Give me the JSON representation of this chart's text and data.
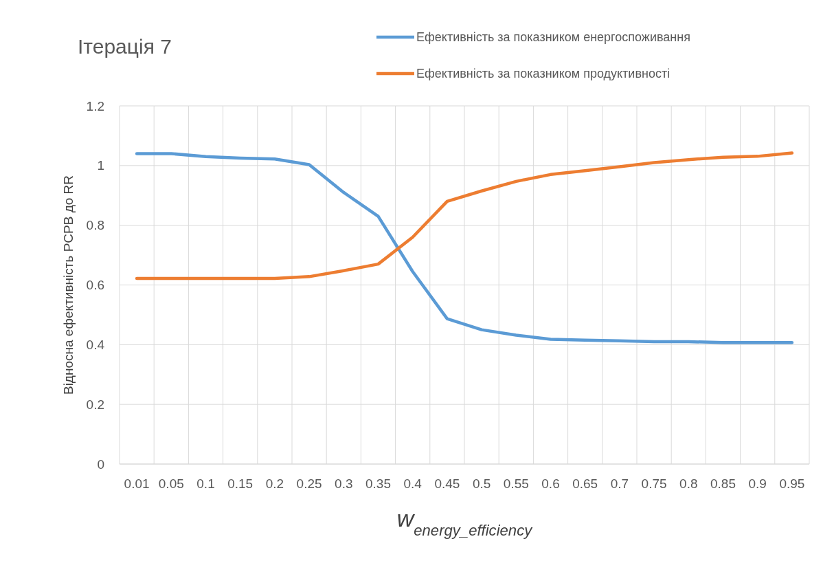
{
  "chart_data": {
    "type": "line",
    "title": "Ітерація 7",
    "xlabel": "w$_{energy_efficiency}$",
    "ylabel": "Відносна ефективність PCPB до RR",
    "categories": [
      "0.01",
      "0.05",
      "0.1",
      "0.15",
      "0.2",
      "0.25",
      "0.3",
      "0.35",
      "0.4",
      "0.45",
      "0.5",
      "0.55",
      "0.6",
      "0.65",
      "0.7",
      "0.75",
      "0.8",
      "0.85",
      "0.9",
      "0.95"
    ],
    "series": [
      {
        "name": "Ефективність за показником енергоспоживання",
        "color": "#5b9bd5",
        "values": [
          1.04,
          1.04,
          1.03,
          1.025,
          1.022,
          1.003,
          0.91,
          0.83,
          0.645,
          0.487,
          0.45,
          0.432,
          0.418,
          0.415,
          0.413,
          0.41,
          0.41,
          0.407,
          0.407,
          0.407
        ]
      },
      {
        "name": "Ефективність за показником продуктивності",
        "color": "#ed7d31",
        "values": [
          0.622,
          0.622,
          0.622,
          0.622,
          0.622,
          0.628,
          0.648,
          0.67,
          0.76,
          0.88,
          0.915,
          0.947,
          0.97,
          0.983,
          0.996,
          1.01,
          1.02,
          1.028,
          1.031,
          1.042
        ]
      }
    ],
    "ylim": [
      0,
      1.2
    ],
    "yticks": [
      0,
      0.2,
      0.4,
      0.6,
      0.8,
      1,
      1.2
    ],
    "grid": true,
    "legend": "top right",
    "marker": "none",
    "line_style": "solid"
  }
}
